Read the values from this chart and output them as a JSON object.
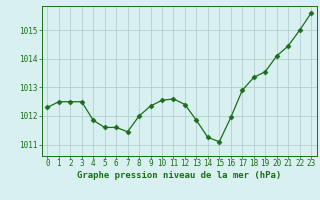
{
  "x": [
    0,
    1,
    2,
    3,
    4,
    5,
    6,
    7,
    8,
    9,
    10,
    11,
    12,
    13,
    14,
    15,
    16,
    17,
    18,
    19,
    20,
    21,
    22,
    23
  ],
  "y": [
    1012.3,
    1012.5,
    1012.5,
    1012.5,
    1011.85,
    1011.6,
    1011.6,
    1011.45,
    1012.0,
    1012.35,
    1012.55,
    1012.6,
    1012.4,
    1011.85,
    1011.25,
    1011.1,
    1011.95,
    1012.9,
    1013.35,
    1013.55,
    1014.1,
    1014.45,
    1015.0,
    1015.6
  ],
  "line_color": "#1a6e1a",
  "marker": "D",
  "marker_size": 2.5,
  "bg_color": "#d9f0f0",
  "grid_color": "#aac8c8",
  "ylabel_ticks": [
    1011,
    1012,
    1013,
    1014,
    1015
  ],
  "xlabel": "Graphe pression niveau de la mer (hPa)",
  "xlabel_fontsize": 6.5,
  "tick_fontsize": 5.5,
  "ylim": [
    1010.6,
    1015.85
  ],
  "xlim": [
    -0.5,
    23.5
  ]
}
